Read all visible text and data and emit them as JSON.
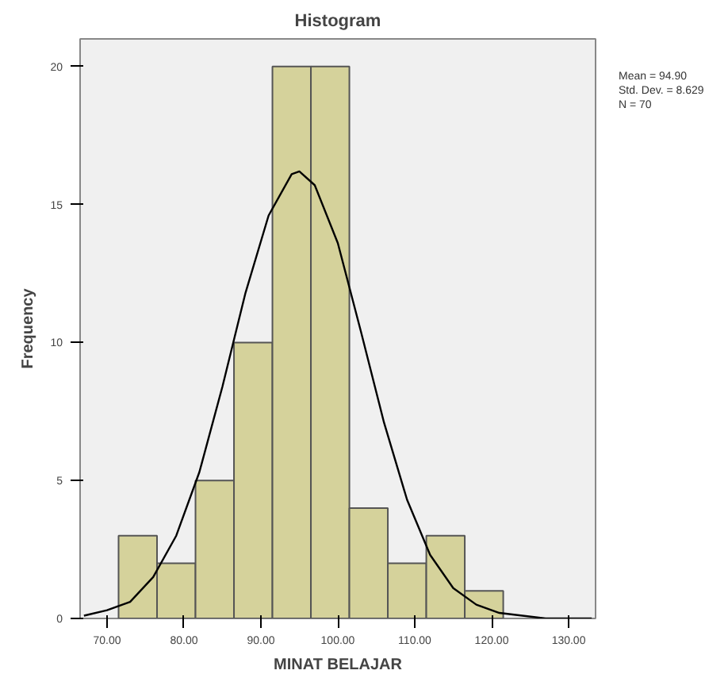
{
  "chart_data": {
    "type": "histogram",
    "title": "Histogram",
    "xlabel": "MINAT BELAJAR",
    "ylabel": "Frequency",
    "bins": [
      71.5,
      76.5,
      81.5,
      86.5,
      91.5,
      96.5,
      101.5,
      106.5,
      111.5,
      116.5,
      121.5
    ],
    "values": [
      3,
      2,
      5,
      10,
      20,
      20,
      4,
      2,
      3,
      1
    ],
    "color": "#d5d29b",
    "series": [
      {
        "type": "line",
        "color": "#000000",
        "x": [
          67,
          70,
          73,
          76,
          79,
          82,
          85,
          88,
          91,
          94,
          95,
          97,
          100,
          103,
          106,
          109,
          112,
          115,
          118,
          121,
          124,
          127,
          130,
          133
        ],
        "values": [
          0.1,
          0.3,
          0.6,
          1.5,
          3.0,
          5.3,
          8.4,
          11.8,
          14.6,
          16.1,
          16.2,
          15.7,
          13.6,
          10.4,
          7.1,
          4.3,
          2.3,
          1.1,
          0.5,
          0.2,
          0.1,
          0.0,
          0.0,
          0.0
        ]
      }
    ],
    "xlim": [
      66.5,
      133.5
    ],
    "ylim": [
      0,
      21
    ],
    "xticks": [
      {
        "value": 70,
        "label": "70.00"
      },
      {
        "value": 80,
        "label": "80.00"
      },
      {
        "value": 90,
        "label": "90.00"
      },
      {
        "value": 100,
        "label": "100.00"
      },
      {
        "value": 110,
        "label": "110.00"
      },
      {
        "value": 120,
        "label": "120.00"
      },
      {
        "value": 130,
        "label": "130.00"
      }
    ],
    "yticks": [
      0,
      5,
      10,
      15,
      20
    ],
    "grid": false,
    "annotations": [
      "Mean = 94.90",
      "Std. Dev. = 8.629",
      "N = 70"
    ]
  }
}
